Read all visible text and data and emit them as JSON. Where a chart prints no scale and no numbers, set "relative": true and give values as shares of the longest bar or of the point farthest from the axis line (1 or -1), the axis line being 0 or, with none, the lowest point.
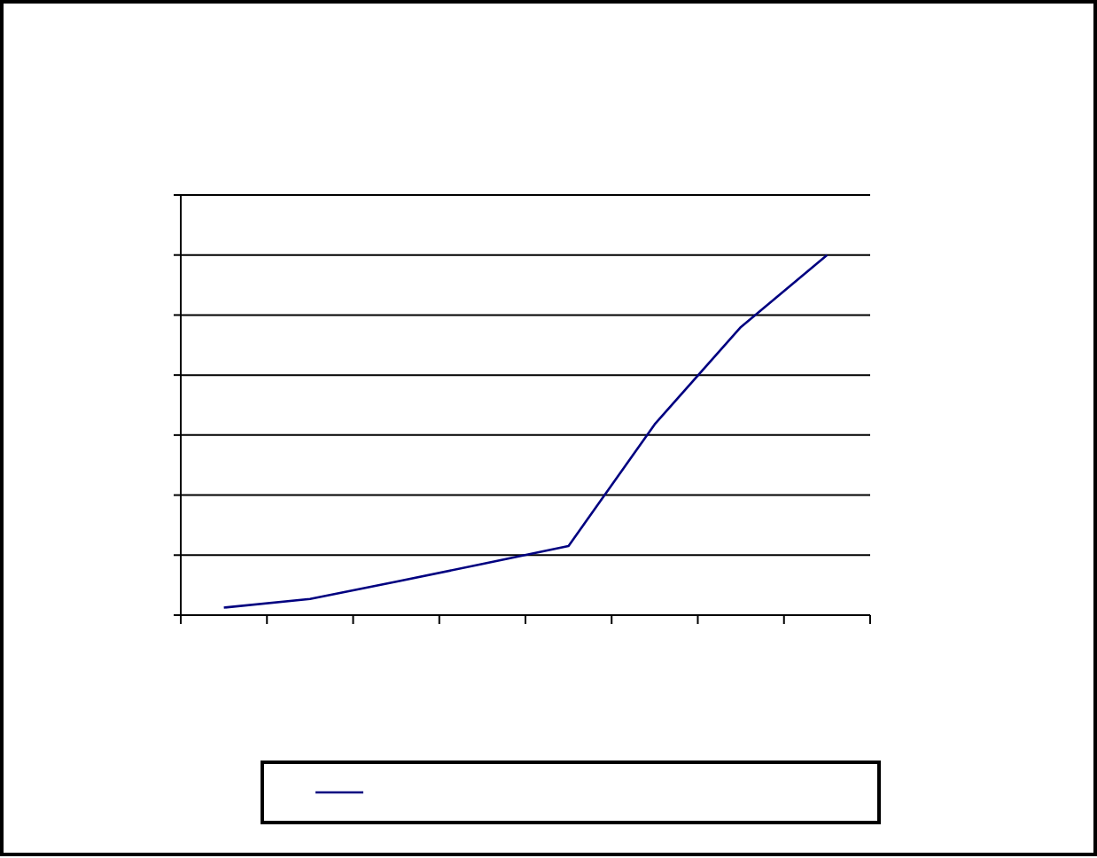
{
  "chart_data": {
    "type": "line",
    "relative": true,
    "categories": [
      null,
      null,
      null,
      null,
      null,
      null,
      null,
      null
    ],
    "series": [
      {
        "color": "#000080",
        "values": [
          0.021,
          0.045,
          0.093,
          0.142,
          0.192,
          0.53,
          0.8,
          1
        ]
      }
    ],
    "grid": "y",
    "marker": "none",
    "line_style": "solid"
  }
}
